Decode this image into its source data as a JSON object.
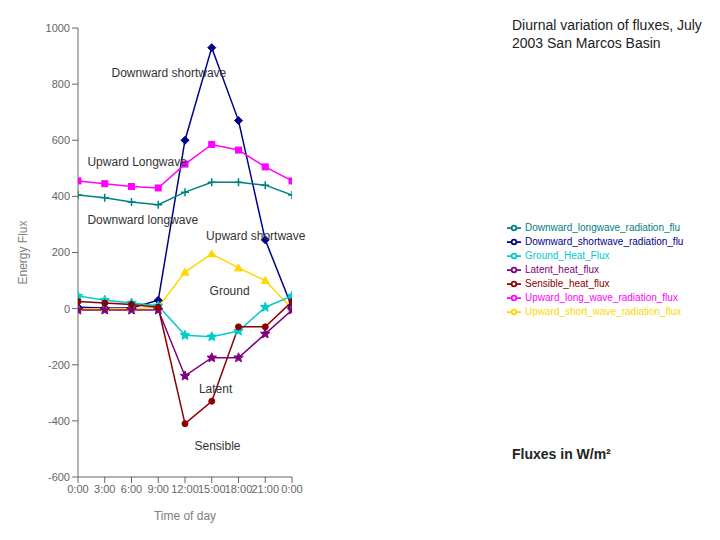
{
  "chart_data": {
    "type": "line",
    "title": "Diurnal variation of fluxes, July 2003 San Marcos Basin",
    "subtitle": "Fluxes in W/m²",
    "x_label": "Time of day",
    "y_label": "Energy Flux",
    "x": [
      0,
      3,
      6,
      9,
      12,
      15,
      18,
      21,
      24
    ],
    "series": [
      {
        "name": "Downward_shortwave_radiation_flu",
        "color": "#00008B",
        "marker": "diamond",
        "values": [
          5,
          2,
          2,
          30,
          600,
          930,
          670,
          245,
          5
        ]
      },
      {
        "name": "Upward_long_wave_radiation_flux",
        "color": "#FF00FF",
        "marker": "square",
        "values": [
          455,
          445,
          435,
          430,
          515,
          585,
          565,
          505,
          455
        ]
      },
      {
        "name": "Upward_short_wave_radiation_flux",
        "color": "#FFD700",
        "marker": "triangle",
        "values": [
          0,
          0,
          0,
          5,
          130,
          195,
          145,
          100,
          0
        ]
      },
      {
        "name": "Ground_Heat_Flux",
        "color": "#00CCCC",
        "marker": "star",
        "values": [
          45,
          30,
          20,
          10,
          -95,
          -100,
          -80,
          5,
          45
        ]
      },
      {
        "name": "Latent_heat_flux",
        "color": "#800080",
        "marker": "star",
        "values": [
          -5,
          -5,
          -5,
          -5,
          -240,
          -175,
          -175,
          -90,
          -5
        ]
      },
      {
        "name": "Sensible_heat_flux",
        "color": "#8B0000",
        "marker": "circle",
        "values": [
          25,
          20,
          15,
          5,
          -410,
          -330,
          -65,
          -65,
          25
        ]
      },
      {
        "name": "Downward_longwave_radiation_flu",
        "color": "#008080",
        "marker": "cross",
        "values": [
          405,
          395,
          380,
          370,
          415,
          450,
          450,
          440,
          405
        ]
      }
    ],
    "xlim": [
      0,
      24
    ],
    "xticks": [
      {
        "value": 0,
        "label": "0:00"
      },
      {
        "value": 3,
        "label": "3:00"
      },
      {
        "value": 6,
        "label": "6:00"
      },
      {
        "value": 9,
        "label": "9:00"
      },
      {
        "value": 12,
        "label": "12:00"
      },
      {
        "value": 15,
        "label": "15:00"
      },
      {
        "value": 18,
        "label": "18:00"
      },
      {
        "value": 21,
        "label": "21:00"
      },
      {
        "value": 24,
        "label": "0:00"
      }
    ],
    "ylim": [
      -600,
      1000
    ],
    "yticks": [
      -600,
      -400,
      -200,
      0,
      200,
      400,
      600,
      800,
      1000
    ],
    "grid": false,
    "legend": "right",
    "annotations": [
      {
        "text": "Downward shortwave",
        "x": 3.2,
        "y": 840
      },
      {
        "text": "Upward Longwave",
        "x": 0.5,
        "y": 525
      },
      {
        "text": "Downward longwave",
        "x": 0.5,
        "y": 315
      },
      {
        "text": "Upward shortwave",
        "x": 13.8,
        "y": 260
      },
      {
        "text": "Ground",
        "x": 14.2,
        "y": 65
      },
      {
        "text": "Latent",
        "x": 13.0,
        "y": -285
      },
      {
        "text": "Sensible",
        "x": 12.5,
        "y": -490
      }
    ]
  }
}
